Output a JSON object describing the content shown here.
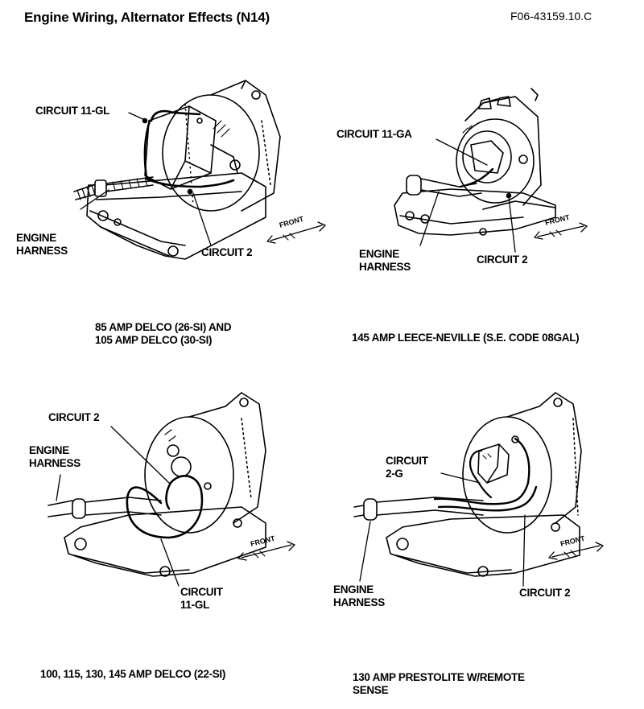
{
  "header": {
    "title": "Engine Wiring, Alternator Effects (N14)",
    "figure_id": "F06-43159.10.C"
  },
  "panels": [
    {
      "caption_lines": [
        "85 AMP DELCO (26-SI) AND",
        "105 AMP DELCO (30-SI)"
      ],
      "labels": {
        "circuit_a": "CIRCUIT 11-GL",
        "harness_1": "ENGINE",
        "harness_2": "HARNESS",
        "circuit_b": "CIRCUIT 2",
        "front": "FRONT"
      }
    },
    {
      "caption_lines": [
        "145 AMP LEECE-NEVILLE (S.E. CODE 08GAL)"
      ],
      "labels": {
        "circuit_a": "CIRCUIT 11-GA",
        "harness_1": "ENGINE",
        "harness_2": "HARNESS",
        "circuit_b": "CIRCUIT 2",
        "front": "FRONT"
      }
    },
    {
      "caption_lines": [
        "100, 115, 130, 145 AMP DELCO (22-SI)"
      ],
      "labels": {
        "circuit_a": "CIRCUIT 2",
        "harness_1": "ENGINE",
        "harness_2": "HARNESS",
        "circuit_b_1": "CIRCUIT",
        "circuit_b_2": "11-GL",
        "front": "FRONT"
      }
    },
    {
      "caption_lines": [
        "130 AMP PRESTOLITE W/REMOTE",
        "SENSE"
      ],
      "labels": {
        "circuit_a_1": "CIRCUIT",
        "circuit_a_2": "2-G",
        "harness_1": "ENGINE",
        "harness_2": "HARNESS",
        "circuit_b": "CIRCUIT 2",
        "front": "FRONT"
      }
    }
  ]
}
